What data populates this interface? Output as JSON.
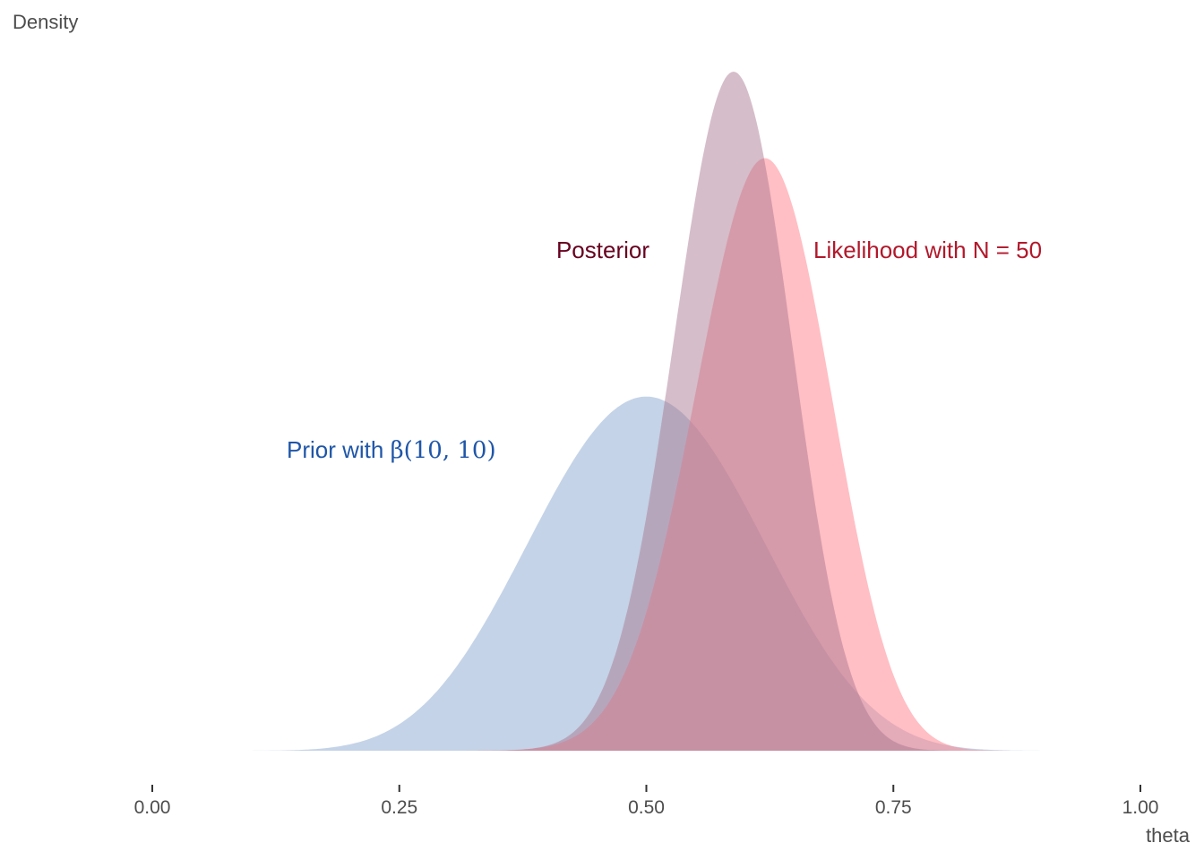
{
  "chart_data": {
    "type": "area",
    "ylabel": "Density",
    "xlabel": "theta",
    "xlim": [
      0,
      1
    ],
    "x_ticks": [
      "0.00",
      "0.25",
      "0.50",
      "0.75",
      "1.00"
    ],
    "x_tick_values": [
      0,
      0.25,
      0.5,
      0.75,
      1.0
    ],
    "grid": false,
    "legend": "none",
    "series": [
      {
        "key": "prior",
        "alpha": 10,
        "beta": 10,
        "color": "#9fb8d9",
        "opacity": 0.62
      },
      {
        "key": "likelihood",
        "alpha": 32,
        "beta": 20,
        "color": "#ff8a93",
        "opacity": 0.55
      },
      {
        "key": "posterior",
        "alpha": 41,
        "beta": 29,
        "color": "#a8758f",
        "opacity": 0.48
      }
    ],
    "annotations": {
      "prior_text": "Prior with ",
      "prior_beta_text": "β(10, 10)",
      "prior_color": "#1f56a8",
      "posterior_text": "Posterior",
      "posterior_color": "#67001f",
      "likelihood_text": "Likelihood with N = 50",
      "likelihood_color": "#b2182b"
    }
  }
}
